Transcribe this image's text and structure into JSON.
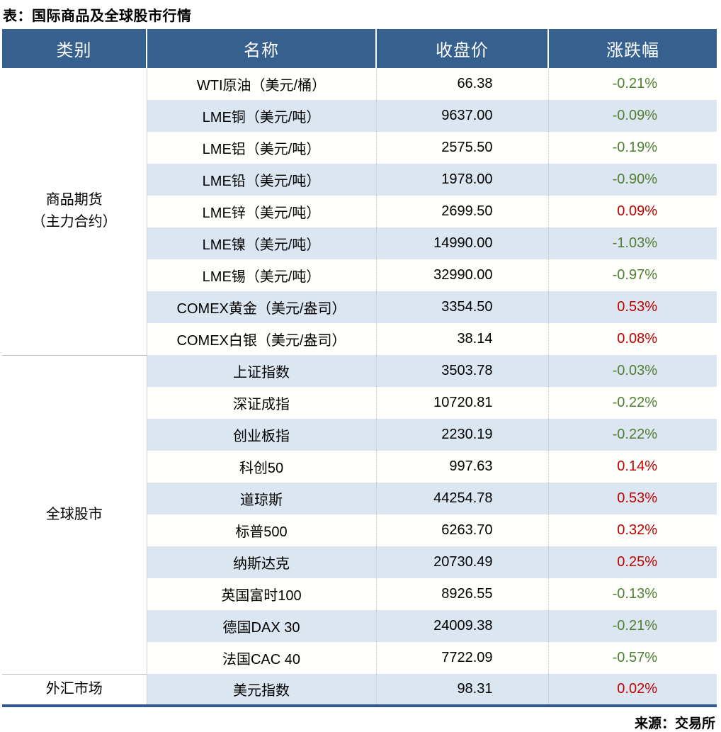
{
  "title": "表：国际商品及全球股市行情",
  "source": "来源：交易所",
  "header": {
    "category": "类别",
    "name": "名称",
    "close": "收盘价",
    "change": "涨跌幅"
  },
  "colors": {
    "header_bg": "#36618F",
    "header_text": "#FFFFFF",
    "row_bg": "#FFFFFB",
    "row_alt_bg": "#DCE6F1",
    "up_red": "#C00000",
    "down_green": "#4F7E32",
    "bottom_border": "#31598C"
  },
  "sections": [
    {
      "category_lines": [
        "商品期货",
        "（主力合约）"
      ],
      "rows": [
        {
          "name": "WTI原油（美元/桶）",
          "close": "66.38",
          "change": "-0.21%",
          "direction": "down"
        },
        {
          "name": "LME铜（美元/吨）",
          "close": "9637.00",
          "change": "-0.09%",
          "direction": "down"
        },
        {
          "name": "LME铝（美元/吨）",
          "close": "2575.50",
          "change": "-0.19%",
          "direction": "down"
        },
        {
          "name": "LME铅（美元/吨）",
          "close": "1978.00",
          "change": "-0.90%",
          "direction": "down"
        },
        {
          "name": "LME锌（美元/吨）",
          "close": "2699.50",
          "change": "0.09%",
          "direction": "up"
        },
        {
          "name": "LME镍（美元/吨）",
          "close": "14990.00",
          "change": "-1.03%",
          "direction": "down"
        },
        {
          "name": "LME锡（美元/吨）",
          "close": "32990.00",
          "change": "-0.97%",
          "direction": "down"
        },
        {
          "name": "COMEX黄金（美元/盎司）",
          "close": "3354.50",
          "change": "0.53%",
          "direction": "up"
        },
        {
          "name": "COMEX白银（美元/盎司）",
          "close": "38.14",
          "change": "0.08%",
          "direction": "up"
        }
      ]
    },
    {
      "category_lines": [
        "全球股市"
      ],
      "rows": [
        {
          "name": "上证指数",
          "close": "3503.78",
          "change": "-0.03%",
          "direction": "down"
        },
        {
          "name": "深证成指",
          "close": "10720.81",
          "change": "-0.22%",
          "direction": "down"
        },
        {
          "name": "创业板指",
          "close": "2230.19",
          "change": "-0.22%",
          "direction": "down"
        },
        {
          "name": "科创50",
          "close": "997.63",
          "change": "0.14%",
          "direction": "up"
        },
        {
          "name": "道琼斯",
          "close": "44254.78",
          "change": "0.53%",
          "direction": "up"
        },
        {
          "name": "标普500",
          "close": "6263.70",
          "change": "0.32%",
          "direction": "up"
        },
        {
          "name": "纳斯达克",
          "close": "20730.49",
          "change": "0.25%",
          "direction": "up"
        },
        {
          "name": "英国富时100",
          "close": "8926.55",
          "change": "-0.13%",
          "direction": "down"
        },
        {
          "name": "德国DAX 30",
          "close": "24009.38",
          "change": "-0.21%",
          "direction": "down"
        },
        {
          "name": "法国CAC 40",
          "close": "7722.09",
          "change": "-0.57%",
          "direction": "down"
        }
      ]
    },
    {
      "category_lines": [
        "外汇市场"
      ],
      "rows": [
        {
          "name": "美元指数",
          "close": "98.31",
          "change": "0.02%",
          "direction": "up"
        }
      ]
    }
  ],
  "chart_data": {
    "type": "table",
    "title": "表：国际商品及全球股市行情",
    "columns": [
      "类别",
      "名称",
      "收盘价",
      "涨跌幅"
    ],
    "rows": [
      [
        "商品期货（主力合约）",
        "WTI原油（美元/桶）",
        66.38,
        "-0.21%"
      ],
      [
        "商品期货（主力合约）",
        "LME铜（美元/吨）",
        9637.0,
        "-0.09%"
      ],
      [
        "商品期货（主力合约）",
        "LME铝（美元/吨）",
        2575.5,
        "-0.19%"
      ],
      [
        "商品期货（主力合约）",
        "LME铅（美元/吨）",
        1978.0,
        "-0.90%"
      ],
      [
        "商品期货（主力合约）",
        "LME锌（美元/吨）",
        2699.5,
        "0.09%"
      ],
      [
        "商品期货（主力合约）",
        "LME镍（美元/吨）",
        14990.0,
        "-1.03%"
      ],
      [
        "商品期货（主力合约）",
        "LME锡（美元/吨）",
        32990.0,
        "-0.97%"
      ],
      [
        "商品期货（主力合约）",
        "COMEX黄金（美元/盎司）",
        3354.5,
        "0.53%"
      ],
      [
        "商品期货（主力合约）",
        "COMEX白银（美元/盎司）",
        38.14,
        "0.08%"
      ],
      [
        "全球股市",
        "上证指数",
        3503.78,
        "-0.03%"
      ],
      [
        "全球股市",
        "深证成指",
        10720.81,
        "-0.22%"
      ],
      [
        "全球股市",
        "创业板指",
        2230.19,
        "-0.22%"
      ],
      [
        "全球股市",
        "科创50",
        997.63,
        "0.14%"
      ],
      [
        "全球股市",
        "道琼斯",
        44254.78,
        "0.53%"
      ],
      [
        "全球股市",
        "标普500",
        6263.7,
        "0.32%"
      ],
      [
        "全球股市",
        "纳斯达克",
        20730.49,
        "0.25%"
      ],
      [
        "全球股市",
        "英国富时100",
        8926.55,
        "-0.13%"
      ],
      [
        "全球股市",
        "德国DAX 30",
        24009.38,
        "-0.21%"
      ],
      [
        "全球股市",
        "法国CAC 40",
        7722.09,
        "-0.57%"
      ],
      [
        "外汇市场",
        "美元指数",
        98.31,
        "0.02%"
      ]
    ],
    "color_legend": {
      "red": "上涨 (positive change)",
      "green": "下跌 (negative change)"
    },
    "source": "来源：交易所"
  }
}
